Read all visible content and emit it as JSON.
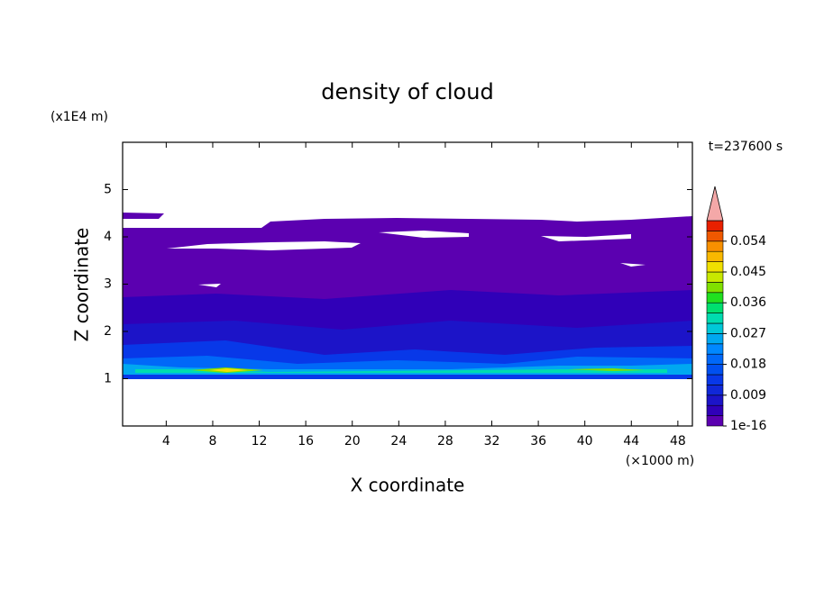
{
  "chart_data": {
    "type": "contour",
    "title": "density of cloud",
    "x_label": "X coordinate",
    "y_label": "Z coordinate",
    "x_unit": "(×1000 m)",
    "y_unit": "(x1E4 m)",
    "time_label": "t=237600 s",
    "xlim": [
      0.25,
      49.25
    ],
    "xticks": [
      4,
      8,
      12,
      16,
      20,
      24,
      28,
      32,
      36,
      40,
      44,
      48
    ],
    "ylim": [
      0,
      6
    ],
    "yticks": [
      1,
      2,
      3,
      4,
      5
    ],
    "colorbar": {
      "lim": [
        0,
        0.06
      ],
      "ticks": [
        {
          "value": 1e-16,
          "label": "1e-16"
        },
        0.009,
        0.018,
        0.027,
        0.036,
        0.045,
        0.054
      ],
      "colors": [
        "#5b00b0",
        "#3000b8",
        "#1c14c8",
        "#1028d8",
        "#0838e8",
        "#0050f0",
        "#0068f8",
        "#0088ff",
        "#00a8f0",
        "#00c8d8",
        "#00dcb0",
        "#00e070",
        "#20e020",
        "#80e000",
        "#c8e800",
        "#f0e000",
        "#f8b800",
        "#f89000",
        "#f05800",
        "#e82000"
      ],
      "extend_color": "#f4a8a8"
    }
  }
}
